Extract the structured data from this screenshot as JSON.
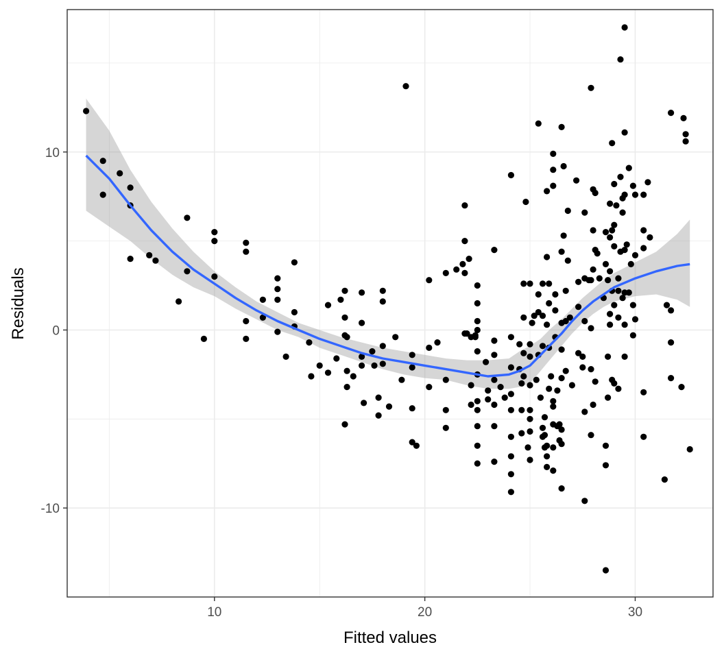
{
  "chart_data": {
    "type": "scatter",
    "title": "",
    "xlabel": "Fitted values",
    "ylabel": "Residuals",
    "xlim": [
      3.0,
      33.7
    ],
    "ylim": [
      -15.0,
      18.0
    ],
    "x_ticks": [
      10,
      20,
      30
    ],
    "y_ticks": [
      -10,
      0,
      10
    ],
    "x_tick_labels": [
      "10",
      "20",
      "30"
    ],
    "y_tick_labels": [
      "-10",
      "0",
      "10"
    ],
    "grid": true,
    "legend": "none",
    "colors": {
      "points": "#000000",
      "smooth_line": "#3366FF",
      "confidence_band": "#999999",
      "panel_border": "#333333",
      "grid": "#ebebeb",
      "background": "#ffffff"
    },
    "points": [
      [
        3.9,
        12.3
      ],
      [
        4.7,
        9.5
      ],
      [
        4.7,
        7.6
      ],
      [
        5.5,
        8.8
      ],
      [
        6.0,
        8.0
      ],
      [
        6.0,
        7.0
      ],
      [
        6.0,
        4.0
      ],
      [
        6.9,
        4.2
      ],
      [
        7.2,
        3.9
      ],
      [
        8.3,
        1.6
      ],
      [
        8.7,
        6.3
      ],
      [
        8.7,
        3.3
      ],
      [
        9.5,
        -0.5
      ],
      [
        10.0,
        5.5
      ],
      [
        10.0,
        5.0
      ],
      [
        10.0,
        3.0
      ],
      [
        11.5,
        4.9
      ],
      [
        11.5,
        4.4
      ],
      [
        11.5,
        0.5
      ],
      [
        11.5,
        -0.5
      ],
      [
        12.3,
        1.7
      ],
      [
        12.3,
        0.7
      ],
      [
        13.0,
        2.9
      ],
      [
        13.0,
        2.3
      ],
      [
        13.0,
        1.7
      ],
      [
        13.0,
        -0.1
      ],
      [
        13.4,
        -1.5
      ],
      [
        13.8,
        3.8
      ],
      [
        13.8,
        1.0
      ],
      [
        13.8,
        0.2
      ],
      [
        14.5,
        -0.7
      ],
      [
        14.6,
        -2.6
      ],
      [
        15.0,
        -2.0
      ],
      [
        15.4,
        1.4
      ],
      [
        15.4,
        -2.4
      ],
      [
        15.8,
        -1.6
      ],
      [
        16.0,
        1.7
      ],
      [
        16.2,
        2.2
      ],
      [
        16.2,
        0.7
      ],
      [
        16.2,
        -0.3
      ],
      [
        16.3,
        -0.4
      ],
      [
        16.3,
        -2.3
      ],
      [
        16.3,
        -3.2
      ],
      [
        16.2,
        -5.3
      ],
      [
        16.6,
        -2.6
      ],
      [
        17.0,
        2.1
      ],
      [
        17.0,
        0.4
      ],
      [
        17.0,
        -1.5
      ],
      [
        17.0,
        -2.0
      ],
      [
        17.1,
        -4.1
      ],
      [
        17.5,
        -1.2
      ],
      [
        17.6,
        -2.0
      ],
      [
        17.8,
        -3.8
      ],
      [
        17.8,
        -4.8
      ],
      [
        18.0,
        2.2
      ],
      [
        18.0,
        1.6
      ],
      [
        18.0,
        -0.9
      ],
      [
        18.0,
        -1.9
      ],
      [
        18.3,
        -4.3
      ],
      [
        18.6,
        -0.4
      ],
      [
        18.9,
        -2.8
      ],
      [
        19.1,
        13.7
      ],
      [
        19.4,
        -1.4
      ],
      [
        19.4,
        -2.1
      ],
      [
        19.4,
        -4.4
      ],
      [
        19.4,
        -6.3
      ],
      [
        19.6,
        -6.5
      ],
      [
        20.2,
        2.8
      ],
      [
        20.2,
        -1.0
      ],
      [
        20.2,
        -3.2
      ],
      [
        20.6,
        -0.7
      ],
      [
        21.0,
        3.2
      ],
      [
        21.0,
        -2.8
      ],
      [
        21.0,
        -4.5
      ],
      [
        21.0,
        -5.5
      ],
      [
        21.5,
        3.4
      ],
      [
        21.8,
        3.7
      ],
      [
        21.9,
        7.0
      ],
      [
        21.9,
        5.0
      ],
      [
        21.9,
        3.2
      ],
      [
        21.9,
        -0.2
      ],
      [
        22.0,
        -0.2
      ],
      [
        22.1,
        4.0
      ],
      [
        22.2,
        -0.4
      ],
      [
        22.2,
        -3.1
      ],
      [
        22.2,
        -4.2
      ],
      [
        22.4,
        -0.3
      ],
      [
        22.4,
        -0.4
      ],
      [
        22.5,
        2.5
      ],
      [
        22.5,
        1.5
      ],
      [
        22.5,
        0.5
      ],
      [
        22.5,
        0.0
      ],
      [
        22.5,
        -1.2
      ],
      [
        22.5,
        -2.5
      ],
      [
        22.5,
        -4.0
      ],
      [
        22.5,
        -4.5
      ],
      [
        22.5,
        -5.4
      ],
      [
        22.5,
        -6.5
      ],
      [
        22.5,
        -7.5
      ],
      [
        22.9,
        -1.8
      ],
      [
        23.0,
        -3.4
      ],
      [
        23.0,
        -3.9
      ],
      [
        23.3,
        -0.6
      ],
      [
        23.3,
        -1.4
      ],
      [
        23.3,
        -2.8
      ],
      [
        23.3,
        -4.2
      ],
      [
        23.3,
        -5.4
      ],
      [
        23.3,
        -7.4
      ],
      [
        23.3,
        4.5
      ],
      [
        23.6,
        -3.2
      ],
      [
        23.8,
        -3.8
      ],
      [
        24.1,
        8.7
      ],
      [
        24.1,
        -0.4
      ],
      [
        24.1,
        -2.1
      ],
      [
        24.1,
        -3.6
      ],
      [
        24.1,
        -4.5
      ],
      [
        24.1,
        -6.0
      ],
      [
        24.1,
        -7.1
      ],
      [
        24.1,
        -8.1
      ],
      [
        24.1,
        -9.1
      ],
      [
        24.5,
        -0.8
      ],
      [
        24.5,
        -2.2
      ],
      [
        24.6,
        -3.0
      ],
      [
        24.6,
        -4.5
      ],
      [
        24.6,
        -5.8
      ],
      [
        24.7,
        2.6
      ],
      [
        24.7,
        0.7
      ],
      [
        24.7,
        -1.3
      ],
      [
        24.7,
        -2.6
      ],
      [
        24.8,
        7.2
      ],
      [
        24.9,
        -6.6
      ],
      [
        25.0,
        -0.8
      ],
      [
        25.0,
        -1.5
      ],
      [
        25.0,
        -3.1
      ],
      [
        25.0,
        -4.5
      ],
      [
        25.0,
        -5.0
      ],
      [
        25.0,
        -5.7
      ],
      [
        25.0,
        -7.3
      ],
      [
        25.0,
        2.6
      ],
      [
        25.1,
        0.4
      ],
      [
        25.2,
        0.8
      ],
      [
        25.3,
        -2.8
      ],
      [
        25.4,
        11.6
      ],
      [
        25.4,
        2.0
      ],
      [
        25.4,
        1.0
      ],
      [
        25.4,
        -1.4
      ],
      [
        25.5,
        -3.8
      ],
      [
        25.6,
        2.6
      ],
      [
        25.6,
        0.8
      ],
      [
        25.6,
        -0.9
      ],
      [
        25.6,
        -5.5
      ],
      [
        25.6,
        -6.0
      ],
      [
        25.7,
        -4.9
      ],
      [
        25.7,
        -5.9
      ],
      [
        25.7,
        -6.6
      ],
      [
        25.8,
        -6.5
      ],
      [
        25.8,
        -7.1
      ],
      [
        25.8,
        -7.7
      ],
      [
        25.8,
        7.8
      ],
      [
        25.8,
        4.1
      ],
      [
        25.8,
        0.3
      ],
      [
        25.9,
        2.6
      ],
      [
        25.9,
        1.5
      ],
      [
        25.9,
        -1.0
      ],
      [
        25.9,
        -3.3
      ],
      [
        26.0,
        -2.6
      ],
      [
        26.1,
        -4.3
      ],
      [
        26.1,
        -5.3
      ],
      [
        26.1,
        -6.6
      ],
      [
        26.1,
        -7.9
      ],
      [
        26.1,
        -4.0
      ],
      [
        26.1,
        8.1
      ],
      [
        26.1,
        9.9
      ],
      [
        26.1,
        9.0
      ],
      [
        26.2,
        2.0
      ],
      [
        26.2,
        1.1
      ],
      [
        26.2,
        -0.4
      ],
      [
        26.3,
        -3.4
      ],
      [
        26.3,
        -5.4
      ],
      [
        26.4,
        -6.2
      ],
      [
        26.4,
        -5.3
      ],
      [
        26.5,
        11.4
      ],
      [
        26.5,
        4.4
      ],
      [
        26.5,
        0.4
      ],
      [
        26.5,
        -1.1
      ],
      [
        26.5,
        -2.7
      ],
      [
        26.5,
        -5.6
      ],
      [
        26.5,
        -6.4
      ],
      [
        26.5,
        -8.9
      ],
      [
        26.6,
        9.2
      ],
      [
        26.6,
        5.3
      ],
      [
        26.7,
        2.2
      ],
      [
        26.7,
        0.5
      ],
      [
        26.7,
        -2.3
      ],
      [
        26.8,
        6.7
      ],
      [
        26.8,
        3.9
      ],
      [
        26.9,
        0.7
      ],
      [
        27.0,
        -3.1
      ],
      [
        27.2,
        8.4
      ],
      [
        27.3,
        2.7
      ],
      [
        27.3,
        1.3
      ],
      [
        27.3,
        -1.3
      ],
      [
        27.5,
        -1.5
      ],
      [
        27.5,
        -2.1
      ],
      [
        27.6,
        6.6
      ],
      [
        27.6,
        2.9
      ],
      [
        27.6,
        0.5
      ],
      [
        27.6,
        -4.6
      ],
      [
        27.6,
        -9.6
      ],
      [
        27.8,
        2.8
      ],
      [
        27.9,
        13.6
      ],
      [
        27.9,
        2.8
      ],
      [
        27.9,
        0.1
      ],
      [
        27.9,
        -2.2
      ],
      [
        27.9,
        -5.9
      ],
      [
        28.0,
        7.9
      ],
      [
        28.0,
        5.6
      ],
      [
        28.0,
        3.4
      ],
      [
        28.0,
        -4.2
      ],
      [
        28.1,
        7.7
      ],
      [
        28.1,
        4.5
      ],
      [
        28.1,
        -2.9
      ],
      [
        28.2,
        4.3
      ],
      [
        28.3,
        2.9
      ],
      [
        28.5,
        1.8
      ],
      [
        28.6,
        5.5
      ],
      [
        28.6,
        3.7
      ],
      [
        28.6,
        -6.5
      ],
      [
        28.6,
        -7.6
      ],
      [
        28.6,
        -13.5
      ],
      [
        28.7,
        2.8
      ],
      [
        28.7,
        -1.5
      ],
      [
        28.7,
        -3.8
      ],
      [
        28.8,
        7.1
      ],
      [
        28.8,
        5.2
      ],
      [
        28.8,
        3.3
      ],
      [
        28.8,
        0.9
      ],
      [
        28.8,
        0.3
      ],
      [
        28.9,
        10.5
      ],
      [
        28.9,
        5.6
      ],
      [
        28.9,
        2.2
      ],
      [
        28.9,
        -2.8
      ],
      [
        29.0,
        8.2
      ],
      [
        29.0,
        5.9
      ],
      [
        29.0,
        4.7
      ],
      [
        29.0,
        1.4
      ],
      [
        29.0,
        -3.0
      ],
      [
        29.1,
        7.0
      ],
      [
        29.2,
        2.9
      ],
      [
        29.2,
        2.2
      ],
      [
        29.2,
        0.7
      ],
      [
        29.2,
        -3.3
      ],
      [
        29.3,
        15.2
      ],
      [
        29.3,
        8.6
      ],
      [
        29.3,
        4.4
      ],
      [
        29.4,
        6.6
      ],
      [
        29.4,
        7.4
      ],
      [
        29.4,
        1.8
      ],
      [
        29.5,
        17.0
      ],
      [
        29.5,
        11.1
      ],
      [
        29.5,
        7.6
      ],
      [
        29.5,
        4.5
      ],
      [
        29.5,
        2.1
      ],
      [
        29.5,
        0.3
      ],
      [
        29.5,
        -1.5
      ],
      [
        29.6,
        4.8
      ],
      [
        29.7,
        9.1
      ],
      [
        29.7,
        2.1
      ],
      [
        29.8,
        3.7
      ],
      [
        29.9,
        8.1
      ],
      [
        29.9,
        1.4
      ],
      [
        29.9,
        -0.3
      ],
      [
        30.0,
        0.6
      ],
      [
        30.0,
        4.2
      ],
      [
        30.0,
        7.6
      ],
      [
        30.4,
        7.6
      ],
      [
        30.4,
        5.6
      ],
      [
        30.4,
        4.6
      ],
      [
        30.4,
        -3.5
      ],
      [
        30.4,
        -6.0
      ],
      [
        30.6,
        8.3
      ],
      [
        30.7,
        5.2
      ],
      [
        31.4,
        -8.4
      ],
      [
        31.5,
        1.4
      ],
      [
        31.7,
        12.2
      ],
      [
        31.7,
        1.1
      ],
      [
        31.7,
        -0.7
      ],
      [
        31.7,
        -2.7
      ],
      [
        32.2,
        -3.2
      ],
      [
        32.3,
        11.9
      ],
      [
        32.4,
        11.0
      ],
      [
        32.4,
        10.6
      ],
      [
        32.6,
        -6.7
      ]
    ],
    "smooth": [
      [
        3.9,
        9.8
      ],
      [
        5.0,
        8.5
      ],
      [
        6.0,
        7.0
      ],
      [
        7.0,
        5.6
      ],
      [
        8.0,
        4.4
      ],
      [
        9.0,
        3.4
      ],
      [
        10.0,
        2.6
      ],
      [
        11.0,
        1.8
      ],
      [
        12.0,
        1.1
      ],
      [
        13.0,
        0.5
      ],
      [
        14.0,
        0.0
      ],
      [
        15.0,
        -0.5
      ],
      [
        16.0,
        -0.9
      ],
      [
        17.0,
        -1.3
      ],
      [
        18.0,
        -1.6
      ],
      [
        19.0,
        -1.8
      ],
      [
        20.0,
        -2.0
      ],
      [
        21.0,
        -2.2
      ],
      [
        22.0,
        -2.4
      ],
      [
        23.0,
        -2.6
      ],
      [
        24.0,
        -2.5
      ],
      [
        24.5,
        -2.3
      ],
      [
        25.0,
        -2.0
      ],
      [
        25.5,
        -1.4
      ],
      [
        26.0,
        -0.8
      ],
      [
        26.5,
        -0.2
      ],
      [
        27.0,
        0.5
      ],
      [
        27.5,
        1.1
      ],
      [
        28.0,
        1.6
      ],
      [
        28.5,
        2.0
      ],
      [
        29.0,
        2.4
      ],
      [
        30.0,
        2.9
      ],
      [
        31.0,
        3.3
      ],
      [
        32.0,
        3.6
      ],
      [
        32.6,
        3.7
      ]
    ],
    "band_upper": [
      [
        3.9,
        13.0
      ],
      [
        5.0,
        11.2
      ],
      [
        6.0,
        9.0
      ],
      [
        7.0,
        7.2
      ],
      [
        8.0,
        5.7
      ],
      [
        9.0,
        4.4
      ],
      [
        10.0,
        3.3
      ],
      [
        11.0,
        2.4
      ],
      [
        12.0,
        1.6
      ],
      [
        13.0,
        1.0
      ],
      [
        14.0,
        0.4
      ],
      [
        15.0,
        0.0
      ],
      [
        16.0,
        -0.4
      ],
      [
        17.0,
        -0.7
      ],
      [
        18.0,
        -1.0
      ],
      [
        19.0,
        -1.2
      ],
      [
        20.0,
        -1.4
      ],
      [
        21.0,
        -1.6
      ],
      [
        22.0,
        -1.7
      ],
      [
        23.0,
        -1.7
      ],
      [
        24.0,
        -1.6
      ],
      [
        24.5,
        -1.2
      ],
      [
        25.0,
        -0.9
      ],
      [
        25.5,
        -0.5
      ],
      [
        26.0,
        0.1
      ],
      [
        26.5,
        0.6
      ],
      [
        27.0,
        1.2
      ],
      [
        27.5,
        1.8
      ],
      [
        28.0,
        2.3
      ],
      [
        28.5,
        2.8
      ],
      [
        29.0,
        3.2
      ],
      [
        30.0,
        3.8
      ],
      [
        31.0,
        4.4
      ],
      [
        32.0,
        5.4
      ],
      [
        32.6,
        6.2
      ]
    ],
    "band_lower": [
      [
        3.9,
        6.7
      ],
      [
        5.0,
        5.8
      ],
      [
        6.0,
        5.0
      ],
      [
        7.0,
        4.0
      ],
      [
        8.0,
        3.1
      ],
      [
        9.0,
        2.4
      ],
      [
        10.0,
        1.9
      ],
      [
        11.0,
        1.2
      ],
      [
        12.0,
        0.6
      ],
      [
        13.0,
        0.0
      ],
      [
        14.0,
        -0.4
      ],
      [
        15.0,
        -1.0
      ],
      [
        16.0,
        -1.4
      ],
      [
        17.0,
        -1.8
      ],
      [
        18.0,
        -2.2
      ],
      [
        19.0,
        -2.5
      ],
      [
        20.0,
        -2.7
      ],
      [
        21.0,
        -2.8
      ],
      [
        22.0,
        -3.1
      ],
      [
        23.0,
        -3.3
      ],
      [
        24.0,
        -3.3
      ],
      [
        24.5,
        -3.2
      ],
      [
        25.0,
        -3.0
      ],
      [
        25.5,
        -2.3
      ],
      [
        26.0,
        -1.6
      ],
      [
        26.5,
        -0.9
      ],
      [
        27.0,
        -0.2
      ],
      [
        27.5,
        0.4
      ],
      [
        28.0,
        0.9
      ],
      [
        28.5,
        1.3
      ],
      [
        29.0,
        1.6
      ],
      [
        30.0,
        1.9
      ],
      [
        31.0,
        2.0
      ],
      [
        32.0,
        1.7
      ],
      [
        32.6,
        1.3
      ]
    ]
  }
}
